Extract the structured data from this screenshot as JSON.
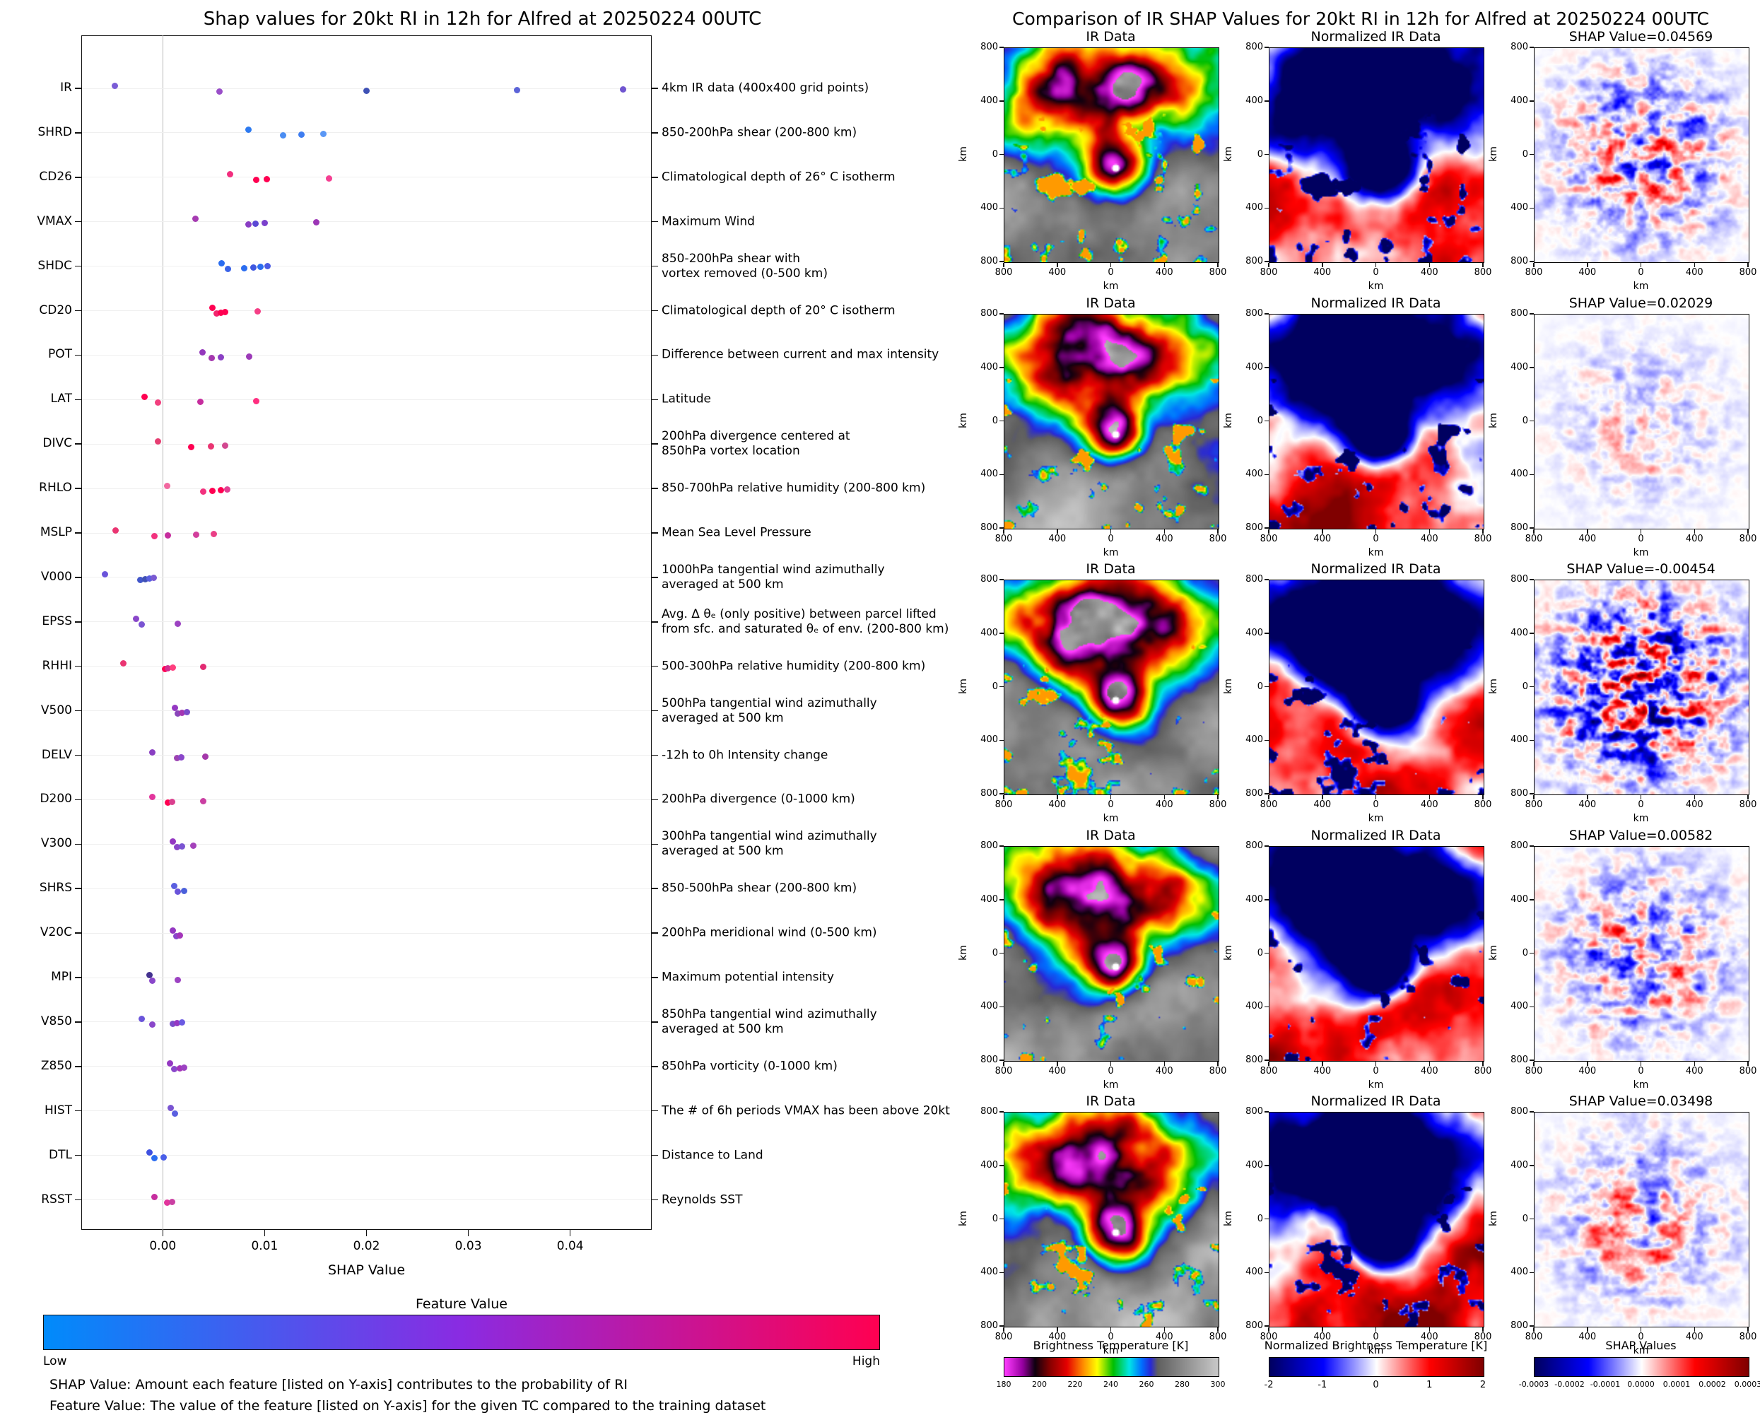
{
  "left_panel": {
    "captions": [
      "SHAP Value: Amount each feature [listed on Y-axis] contributes to the probability of RI",
      "Feature Value: The value of the feature [listed on Y-axis] for the given TC compared to the training dataset"
    ]
  },
  "right_panel": {
    "axis_label": "km",
    "axis_tick_labels": [
      "800",
      "400",
      "0",
      "400",
      "800"
    ]
  },
  "chart_data": [
    {
      "type": "scatter",
      "variant": "shap-beeswarm",
      "title": "Shap values for 20kt RI in 12h for Alfred at 20250224 00UTC",
      "xlabel": "SHAP Value",
      "xlim": [
        -0.008,
        0.048
      ],
      "x_ticks": [
        0,
        0.01,
        0.02,
        0.03,
        0.04
      ],
      "x_tick_labels": [
        "0.00",
        "0.01",
        "0.02",
        "0.03",
        "0.04"
      ],
      "grid": "row-lines, zero-line",
      "legend_position": "bottom-colorbar",
      "colormap": {
        "title": "Feature Value",
        "low_label": "Low",
        "high_label": "High",
        "low_color": "#008bfb",
        "mid_color": "#8a2be2",
        "high_color": "#ff0051"
      },
      "features": [
        {
          "name": "IR",
          "description": "4km IR data (400x400 grid points)",
          "points": [
            [
              -0.0047,
              "#7a5cd6"
            ],
            [
              0.0056,
              "#9a4fc9"
            ],
            [
              0.02,
              "#3f51b5"
            ],
            [
              0.0348,
              "#5b63d8"
            ],
            [
              0.0452,
              "#7055d0"
            ]
          ]
        },
        {
          "name": "SHRD",
          "description": "850-200hPa shear (200-800 km)",
          "points": [
            [
              0.0084,
              "#2d7af0"
            ],
            [
              0.0118,
              "#4b8df2"
            ],
            [
              0.0136,
              "#3f7df0"
            ],
            [
              0.0158,
              "#5a97f5"
            ]
          ]
        },
        {
          "name": "CD26",
          "description": "Climatological depth of 26° C isotherm",
          "points": [
            [
              0.0066,
              "#f22e7e"
            ],
            [
              0.0092,
              "#ff0051"
            ],
            [
              0.0102,
              "#ff0051"
            ],
            [
              0.0163,
              "#f53f92"
            ]
          ]
        },
        {
          "name": "VMAX",
          "description": "Maximum Wind",
          "points": [
            [
              0.0032,
              "#a63bb2"
            ],
            [
              0.0084,
              "#8a3ec4"
            ],
            [
              0.0091,
              "#5b48d4"
            ],
            [
              0.01,
              "#7a40cc"
            ],
            [
              0.0151,
              "#9c36b6"
            ]
          ]
        },
        {
          "name": "SHDC",
          "description": "850-200hPa shear with\nvortex removed (0-500 km)",
          "points": [
            [
              0.0058,
              "#2b6df0"
            ],
            [
              0.0064,
              "#3a63e8"
            ],
            [
              0.008,
              "#2b6df0"
            ],
            [
              0.0089,
              "#3f58e0"
            ],
            [
              0.0096,
              "#2b6df0"
            ],
            [
              0.0103,
              "#4a5ae4"
            ]
          ]
        },
        {
          "name": "CD20",
          "description": "Climatological depth of 20° C isotherm",
          "points": [
            [
              0.0049,
              "#ff0051"
            ],
            [
              0.0053,
              "#f2266e"
            ],
            [
              0.0057,
              "#ff0051"
            ],
            [
              0.0061,
              "#ff0051"
            ],
            [
              0.0093,
              "#f53f86"
            ]
          ]
        },
        {
          "name": "POT",
          "description": "Difference between current and max intensity",
          "points": [
            [
              0.0039,
              "#9438bc"
            ],
            [
              0.0048,
              "#a437ae"
            ],
            [
              0.0057,
              "#8a40c4"
            ],
            [
              0.0085,
              "#9c3ab8"
            ]
          ]
        },
        {
          "name": "LAT",
          "description": "Latitude",
          "points": [
            [
              -0.0018,
              "#ff0051"
            ],
            [
              -0.0005,
              "#f23f7e"
            ],
            [
              0.0037,
              "#c62d9e"
            ],
            [
              0.0092,
              "#ff2e80"
            ]
          ]
        },
        {
          "name": "DIVC",
          "description": "200hPa divergence centered at\n850hPa vortex location",
          "points": [
            [
              -0.0005,
              "#e63f72"
            ],
            [
              0.0028,
              "#ff0051"
            ],
            [
              0.0047,
              "#ea3572"
            ],
            [
              0.0061,
              "#d24890"
            ]
          ]
        },
        {
          "name": "RHLO",
          "description": "850-700hPa relative humidity (200-800 km)",
          "points": [
            [
              0.0004,
              "#f268a0"
            ],
            [
              0.004,
              "#f2327e"
            ],
            [
              0.0049,
              "#ff0051"
            ],
            [
              0.0057,
              "#ff0051"
            ],
            [
              0.0063,
              "#e23f92"
            ]
          ]
        },
        {
          "name": "MSLP",
          "description": "Mean Sea Level Pressure",
          "points": [
            [
              -0.0046,
              "#ea3572"
            ],
            [
              -0.0008,
              "#f2327e"
            ],
            [
              0.0005,
              "#c62d9e"
            ],
            [
              0.0033,
              "#d23f9c"
            ],
            [
              0.005,
              "#ea3f86"
            ]
          ]
        },
        {
          "name": "V000",
          "description": "1000hPa tangential wind azimuthally\naveraged at 500 km",
          "points": [
            [
              -0.0057,
              "#6a54da"
            ],
            [
              -0.0022,
              "#4257ca"
            ],
            [
              -0.0017,
              "#3f51b5"
            ],
            [
              -0.0013,
              "#5a5fe0"
            ],
            [
              -0.0009,
              "#7a5ad2"
            ]
          ]
        },
        {
          "name": "EPSS",
          "description": "Avg. Δ θₑ (only positive) between parcel lifted\nfrom sfc. and saturated θₑ of env. (200-800 km)",
          "points": [
            [
              -0.0026,
              "#8a47ca"
            ],
            [
              -0.0021,
              "#7a54d2"
            ],
            [
              0.0015,
              "#9c42c2"
            ]
          ]
        },
        {
          "name": "RHHI",
          "description": "500-300hPa relative humidity (200-800 km)",
          "points": [
            [
              -0.0039,
              "#ea3572"
            ],
            [
              0.0002,
              "#ff0051"
            ],
            [
              0.0005,
              "#d22d90"
            ],
            [
              0.001,
              "#ff3f7e"
            ],
            [
              0.004,
              "#e22a72"
            ]
          ]
        },
        {
          "name": "V500",
          "description": "500hPa tangential wind azimuthally\naveraged at 500 km",
          "points": [
            [
              0.0012,
              "#9438c2"
            ],
            [
              0.0015,
              "#8a47ba"
            ],
            [
              0.0019,
              "#a435b2"
            ],
            [
              0.0024,
              "#7a4cca"
            ]
          ]
        },
        {
          "name": "DELV",
          "description": "-12h to 0h Intensity change",
          "points": [
            [
              -0.001,
              "#8a3fc2"
            ],
            [
              0.0014,
              "#9c42b2"
            ],
            [
              0.0018,
              "#8a47ca"
            ],
            [
              0.0042,
              "#a438aa"
            ]
          ]
        },
        {
          "name": "D200",
          "description": "200hPa divergence (0-1000 km)",
          "points": [
            [
              -0.001,
              "#e2359c"
            ],
            [
              0.0005,
              "#ff0051"
            ],
            [
              0.0009,
              "#da3f8e"
            ],
            [
              0.004,
              "#ca3fa2"
            ]
          ]
        },
        {
          "name": "V300",
          "description": "300hPa tangential wind azimuthally\naveraged at 500 km",
          "points": [
            [
              0.001,
              "#9438c2"
            ],
            [
              0.0014,
              "#8a47ca"
            ],
            [
              0.0019,
              "#7a54d2"
            ],
            [
              0.003,
              "#a442ba"
            ]
          ]
        },
        {
          "name": "SHRS",
          "description": "850-500hPa shear (200-800 km)",
          "points": [
            [
              0.0011,
              "#5a5fe0"
            ],
            [
              0.0015,
              "#6a54da"
            ],
            [
              0.0021,
              "#4a5fda"
            ]
          ]
        },
        {
          "name": "V20C",
          "description": "200hPa meridional wind (0-500 km)",
          "points": [
            [
              0.001,
              "#9438c2"
            ],
            [
              0.0013,
              "#8a47ca"
            ],
            [
              0.0017,
              "#a435ba"
            ]
          ]
        },
        {
          "name": "MPI",
          "description": "Maximum potential intensity",
          "points": [
            [
              -0.0013,
              "#43318f"
            ],
            [
              -0.001,
              "#8a47ca"
            ],
            [
              0.0015,
              "#9c42c2"
            ]
          ]
        },
        {
          "name": "V850",
          "description": "850hPa tangential wind azimuthally\naveraged at 500 km",
          "points": [
            [
              -0.0021,
              "#6a54da"
            ],
            [
              -0.001,
              "#8a47ca"
            ],
            [
              0.001,
              "#7a4cca"
            ],
            [
              0.0014,
              "#9438c2"
            ],
            [
              0.0019,
              "#6a5ae2"
            ]
          ]
        },
        {
          "name": "Z850",
          "description": "850hPa vorticity (0-1000 km)",
          "points": [
            [
              0.0007,
              "#9438c2"
            ],
            [
              0.0011,
              "#8a47ca"
            ],
            [
              0.0017,
              "#a435ba"
            ],
            [
              0.0021,
              "#9c42c2"
            ]
          ]
        },
        {
          "name": "HIST",
          "description": "The # of 6h periods VMAX has been above 20kt",
          "points": [
            [
              0.0008,
              "#7a54d2"
            ],
            [
              0.0012,
              "#5a5fe0"
            ]
          ]
        },
        {
          "name": "DTL",
          "description": "Distance to Land",
          "points": [
            [
              -0.0013,
              "#3f51e0"
            ],
            [
              -0.0008,
              "#2b6df0"
            ],
            [
              0.0001,
              "#4a5fe8"
            ]
          ]
        },
        {
          "name": "RSST",
          "description": "Reynolds SST",
          "points": [
            [
              -0.0008,
              "#c62d9e"
            ],
            [
              0.0004,
              "#e2359c"
            ],
            [
              0.0009,
              "#ca3fa2"
            ]
          ]
        }
      ]
    },
    {
      "type": "heatmap",
      "variant": "ir-shap-map-grid",
      "title": "Comparison of IR SHAP Values for 20kt RI in 12h for Alfred at 20250224 00UTC",
      "axis_label": "km",
      "axis_range_km": [
        -800,
        800
      ],
      "axis_tick_labels": [
        "800",
        "400",
        "0",
        "400",
        "800"
      ],
      "rows": [
        {
          "ir_title": "IR Data",
          "normalized_title": "Normalized IR Data",
          "shap_title": "SHAP Value=0.04569",
          "shap_value": 0.04569
        },
        {
          "ir_title": "IR Data",
          "normalized_title": "Normalized IR Data",
          "shap_title": "SHAP Value=0.02029",
          "shap_value": 0.02029
        },
        {
          "ir_title": "IR Data",
          "normalized_title": "Normalized IR Data",
          "shap_title": "SHAP Value=-0.00454",
          "shap_value": -0.00454
        },
        {
          "ir_title": "IR Data",
          "normalized_title": "Normalized IR Data",
          "shap_title": "SHAP Value=0.00582",
          "shap_value": 0.00582
        },
        {
          "ir_title": "IR Data",
          "normalized_title": "Normalized IR Data",
          "shap_title": "SHAP Value=0.03498",
          "shap_value": 0.03498
        }
      ],
      "colorbars": [
        {
          "title": "Brightness Temperature [K]",
          "tick_labels": [
            "180",
            "200",
            "220",
            "240",
            "260",
            "280",
            "300"
          ],
          "range": [
            180,
            300
          ],
          "colormap": "ir-enhancement"
        },
        {
          "title": "Normalized Brightness Temperature [K]",
          "tick_labels": [
            "-2",
            "-1",
            "0",
            "1",
            "2"
          ],
          "range": [
            -2.5,
            2.5
          ],
          "colormap": "seismic"
        },
        {
          "title": "SHAP Values",
          "tick_labels": [
            "-0.0003",
            "-0.0002",
            "-0.0001",
            "0.0000",
            "0.0001",
            "0.0002",
            "0.0003"
          ],
          "range": [
            -0.0003,
            0.0003
          ],
          "colormap": "seismic"
        }
      ]
    }
  ]
}
